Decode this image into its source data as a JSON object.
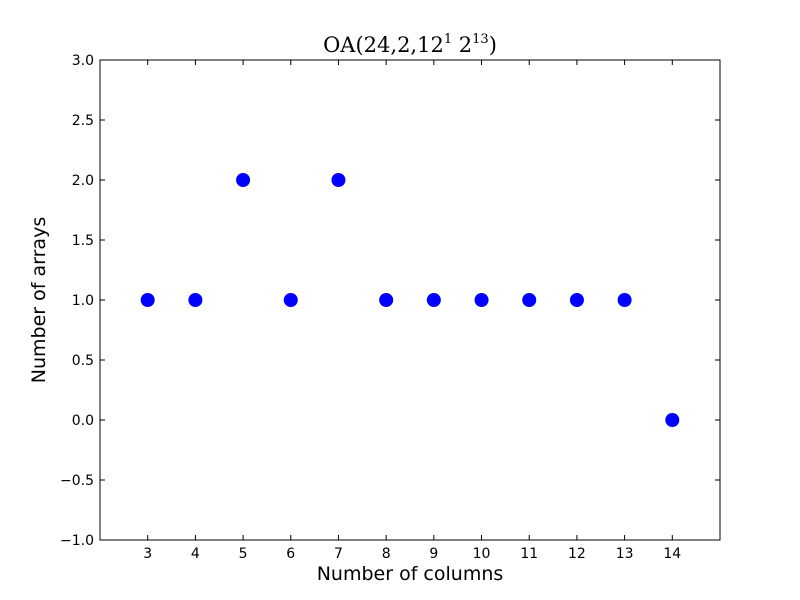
{
  "chart_data": {
    "type": "scatter",
    "title": {
      "prefix": "OA(24,2,12",
      "sup1": "1",
      "middle": " 2",
      "sup2": "13",
      "suffix": ")"
    },
    "xlabel": "Number of columns",
    "ylabel": "Number of arrays",
    "xlim": [
      2,
      15
    ],
    "ylim": [
      -1.0,
      3.0
    ],
    "xticks": [
      3,
      4,
      5,
      6,
      7,
      8,
      9,
      10,
      11,
      12,
      13,
      14
    ],
    "yticks": [
      -1.0,
      -0.5,
      0.0,
      0.5,
      1.0,
      1.5,
      2.0,
      2.5,
      3.0
    ],
    "ytick_labels": [
      "−1.0",
      "−0.5",
      "0.0",
      "0.5",
      "1.0",
      "1.5",
      "2.0",
      "2.5",
      "3.0"
    ],
    "points": [
      {
        "x": 3,
        "y": 1
      },
      {
        "x": 4,
        "y": 1
      },
      {
        "x": 5,
        "y": 2
      },
      {
        "x": 6,
        "y": 1
      },
      {
        "x": 7,
        "y": 2
      },
      {
        "x": 8,
        "y": 1
      },
      {
        "x": 9,
        "y": 1
      },
      {
        "x": 10,
        "y": 1
      },
      {
        "x": 11,
        "y": 1
      },
      {
        "x": 12,
        "y": 1
      },
      {
        "x": 13,
        "y": 1
      },
      {
        "x": 14,
        "y": 0
      }
    ],
    "marker_color": "#0000ff",
    "grid": false,
    "legend": "none"
  }
}
